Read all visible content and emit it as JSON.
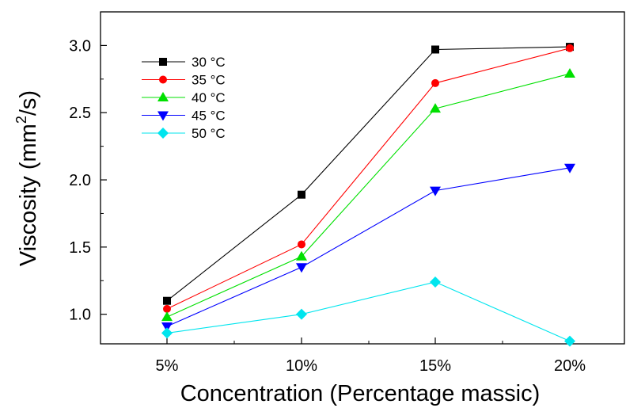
{
  "chart_data": {
    "type": "line",
    "categories": [
      "5%",
      "10%",
      "15%",
      "20%"
    ],
    "xlabel": "Concentration (Percentage massic)",
    "ylabel_prefix": "Viscosity (mm",
    "ylabel_sup": "2",
    "ylabel_suffix": "/s)",
    "ylim": [
      0.78,
      3.25
    ],
    "yticks": [
      1.0,
      1.5,
      2.0,
      2.5,
      3.0
    ],
    "ytick_labels": [
      "1.0",
      "1.5",
      "2.0",
      "2.5",
      "3.0"
    ],
    "grid": false,
    "legend_position": "top-left",
    "series": [
      {
        "name": "30 °C",
        "color": "#000000",
        "marker": "square",
        "values": [
          1.1,
          1.89,
          2.97,
          2.99
        ]
      },
      {
        "name": "35 °C",
        "color": "#ff0000",
        "marker": "circle",
        "values": [
          1.04,
          1.52,
          2.72,
          2.98
        ]
      },
      {
        "name": "40 °C",
        "color": "#00e000",
        "marker": "triangle-up",
        "values": [
          0.98,
          1.43,
          2.53,
          2.79
        ]
      },
      {
        "name": "45 °C",
        "color": "#0000ff",
        "marker": "triangle-down",
        "values": [
          0.91,
          1.35,
          1.92,
          2.09
        ]
      },
      {
        "name": "50 °C",
        "color": "#00e5ee",
        "marker": "diamond",
        "values": [
          0.86,
          1.0,
          1.24,
          0.8
        ]
      }
    ]
  }
}
